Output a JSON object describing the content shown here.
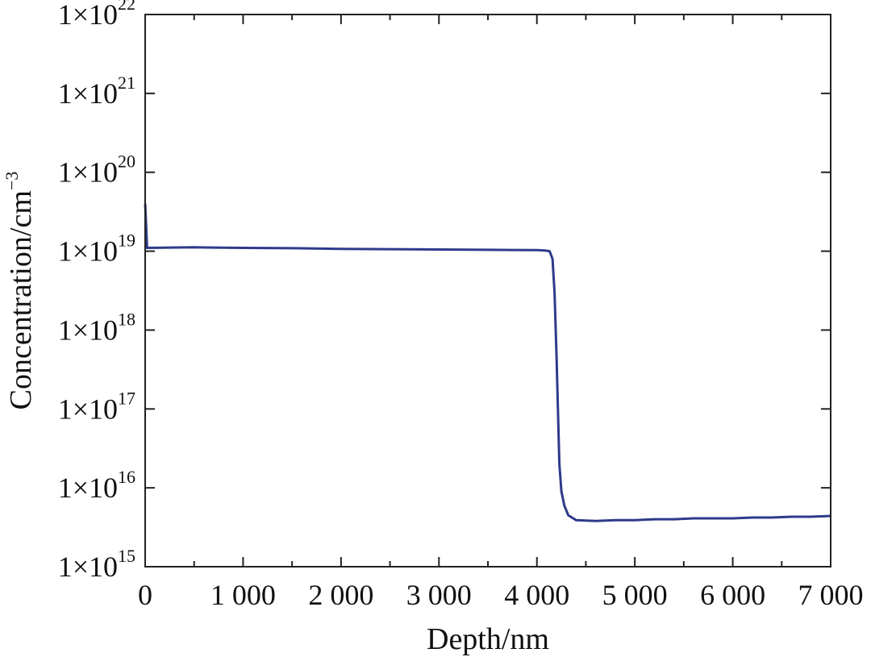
{
  "chart_data": {
    "type": "line",
    "xlabel": "Depth/nm",
    "ylabel_text": "Concentration/cm",
    "ylabel_exp": "−3",
    "x_ticks": [
      {
        "value": 0,
        "label": "0"
      },
      {
        "value": 1000,
        "label": "1 000"
      },
      {
        "value": 2000,
        "label": "2 000"
      },
      {
        "value": 3000,
        "label": "3 000"
      },
      {
        "value": 4000,
        "label": "4 000"
      },
      {
        "value": 5000,
        "label": "5 000"
      },
      {
        "value": 6000,
        "label": "6 000"
      },
      {
        "value": 7000,
        "label": "7 000"
      }
    ],
    "y_ticks": [
      {
        "value": 1000000000000000.0,
        "mantissa": "1×10",
        "exponent": "15"
      },
      {
        "value": 1e+16,
        "mantissa": "1×10",
        "exponent": "16"
      },
      {
        "value": 1e+17,
        "mantissa": "1×10",
        "exponent": "17"
      },
      {
        "value": 1e+18,
        "mantissa": "1×10",
        "exponent": "18"
      },
      {
        "value": 1e+19,
        "mantissa": "1×10",
        "exponent": "19"
      },
      {
        "value": 1e+20,
        "mantissa": "1×10",
        "exponent": "20"
      },
      {
        "value": 1e+21,
        "mantissa": "1×10",
        "exponent": "21"
      },
      {
        "value": 1e+22,
        "mantissa": "1×10",
        "exponent": "22"
      }
    ],
    "xlim": [
      0,
      7000
    ],
    "ylim": [
      1000000000000000.0,
      1e+22
    ],
    "yscale": "log",
    "grid": false,
    "line_color": "#2e3a8c",
    "series": [
      {
        "points": [
          [
            0,
            4e+19
          ],
          [
            20,
            1.1e+19
          ],
          [
            500,
            1.12e+19
          ],
          [
            1000,
            1.1e+19
          ],
          [
            1500,
            1.09e+19
          ],
          [
            2000,
            1.07e+19
          ],
          [
            2500,
            1.06e+19
          ],
          [
            3000,
            1.05e+19
          ],
          [
            3500,
            1.04e+19
          ],
          [
            4000,
            1.03e+19
          ],
          [
            4080,
            1.02e+19
          ],
          [
            4130,
            1e+19
          ],
          [
            4160,
            8e+18
          ],
          [
            4180,
            3e+18
          ],
          [
            4200,
            5e+17
          ],
          [
            4215,
            1e+17
          ],
          [
            4230,
            2e+16
          ],
          [
            4250,
            9000000000000000.0
          ],
          [
            4280,
            6000000000000000.0
          ],
          [
            4320,
            4500000000000000.0
          ],
          [
            4400,
            3900000000000000.0
          ],
          [
            4600,
            3800000000000000.0
          ],
          [
            4800,
            3900000000000000.0
          ],
          [
            5000,
            3900000000000000.0
          ],
          [
            5200,
            4000000000000000.0
          ],
          [
            5400,
            4000000000000000.0
          ],
          [
            5600,
            4100000000000000.0
          ],
          [
            5800,
            4100000000000000.0
          ],
          [
            6000,
            4100000000000000.0
          ],
          [
            6200,
            4200000000000000.0
          ],
          [
            6400,
            4200000000000000.0
          ],
          [
            6600,
            4300000000000000.0
          ],
          [
            6800,
            4300000000000000.0
          ],
          [
            7000,
            4400000000000000.0
          ]
        ]
      }
    ]
  }
}
